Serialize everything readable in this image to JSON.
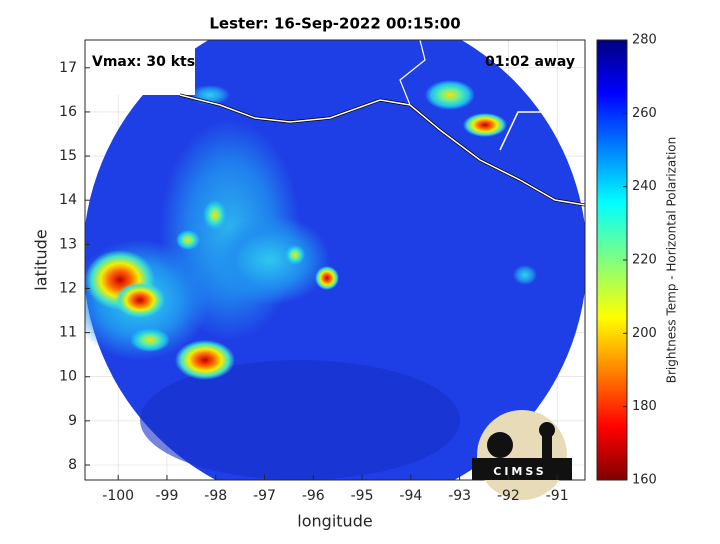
{
  "chart_data": {
    "type": "map",
    "title": "Lester: 16-Sep-2022 00:15:00",
    "annotations": [
      "Vmax: 30 kts",
      "01:02 away"
    ],
    "xlabel": "longitude",
    "ylabel": "latitude",
    "xlim": [
      -100.68,
      -90.43
    ],
    "xticks": [
      -100,
      -99,
      -98,
      -97,
      -96,
      -95,
      -94,
      -93,
      -92,
      -91
    ],
    "ylim": [
      7.66,
      17.63
    ],
    "yticks": [
      8,
      9,
      10,
      11,
      12,
      13,
      14,
      15,
      16,
      17
    ],
    "grid": true,
    "colorbar": {
      "label": "Brightness Temp - Horizontal Polarization",
      "lim": [
        160,
        280
      ],
      "ticks": [
        160,
        180,
        200,
        220,
        240,
        260,
        280
      ],
      "colormap": "jet-reversed"
    },
    "logo": "CIMSS"
  }
}
